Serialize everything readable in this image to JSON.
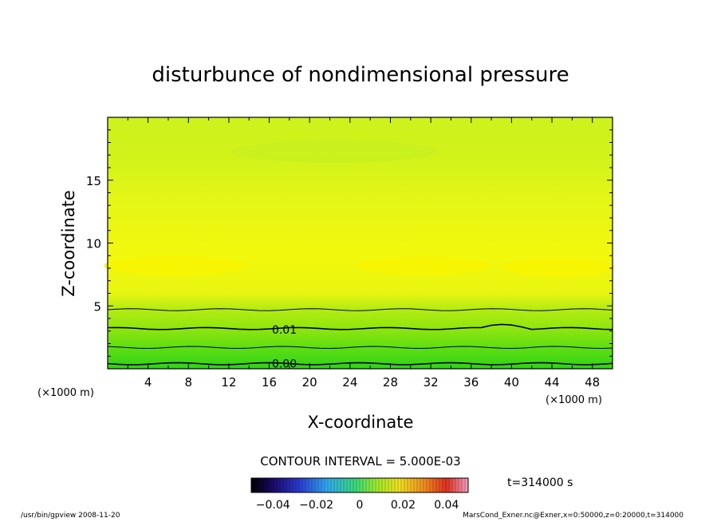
{
  "chart_data": {
    "type": "contour",
    "title": "disturbunce of nondimensional pressure",
    "xlabel": "X-coordinate",
    "ylabel": "Z-coordinate",
    "x_unit": "(×1000 m)",
    "z_unit": "(×1000 m)",
    "xlim": [
      0,
      50
    ],
    "ylim": [
      0,
      20
    ],
    "xticks": [
      4,
      8,
      12,
      16,
      20,
      24,
      28,
      32,
      36,
      40,
      44,
      48
    ],
    "yticks": [
      5,
      10,
      15
    ],
    "contour_labels": [
      {
        "value": "0.01",
        "x": 17.5,
        "z": 3.1
      },
      {
        "value": "0.00",
        "x": 17.5,
        "z": 0.4
      }
    ],
    "contour_lines_z": [
      4.7,
      3.2,
      1.7,
      0.4
    ],
    "contour_interval_text": "CONTOUR INTERVAL = 5.000E-03",
    "colorbar": {
      "ticks": [
        "−0.04",
        "−0.02",
        "0",
        "0.02",
        "0.04"
      ],
      "range": [
        -0.05,
        0.05
      ]
    },
    "time_label": "t=314000 s",
    "grid": false,
    "colors": {
      "top_band": "#ccf21a",
      "mid_band": "#eef712",
      "peak_band": "#f8f700",
      "low_band": "#8fe80f",
      "bottom_band": "#2fd814"
    }
  },
  "footer": {
    "left": "/usr/bin/gpview   2008-11-20",
    "right": "MarsCond_Exner.nc@Exner,x=0:50000,z=0:20000,t=314000"
  }
}
